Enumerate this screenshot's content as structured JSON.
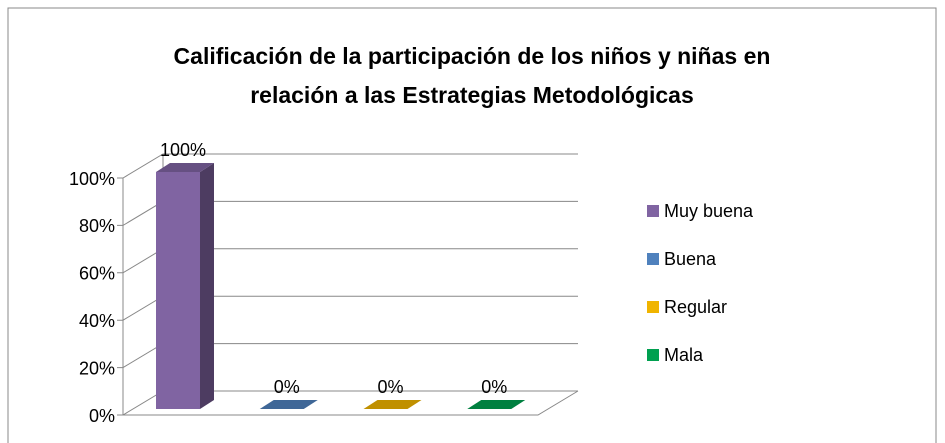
{
  "chart_data": {
    "type": "bar3d",
    "title": [
      "Calificación de la participación de los niños y niñas en",
      "relación a las Estrategias Metodológicas"
    ],
    "categories": [
      null
    ],
    "series": [
      {
        "name": "Muy buena",
        "color": "#8064a2",
        "values": [
          100
        ],
        "value_labels": [
          "100%"
        ]
      },
      {
        "name": "Buena",
        "color": "#4f81bd",
        "values": [
          0
        ],
        "value_labels": [
          "0%"
        ]
      },
      {
        "name": "Regular",
        "color": "#f0b400",
        "values": [
          0
        ],
        "value_labels": [
          "0%"
        ]
      },
      {
        "name": "Mala",
        "color": "#00a050",
        "values": [
          0
        ],
        "value_labels": [
          "0%"
        ]
      }
    ],
    "ylim": [
      0,
      100
    ],
    "yticks": [
      {
        "value": 0,
        "label": "0%"
      },
      {
        "value": 20,
        "label": "20%"
      },
      {
        "value": 40,
        "label": "40%"
      },
      {
        "value": 60,
        "label": "60%"
      },
      {
        "value": 80,
        "label": "80%"
      },
      {
        "value": 100,
        "label": "100%"
      }
    ],
    "grid": true,
    "legend": "right"
  }
}
